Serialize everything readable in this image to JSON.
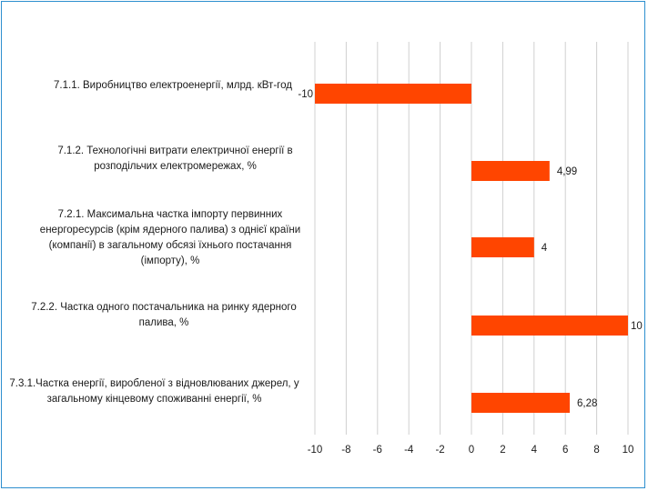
{
  "chart_data": {
    "type": "bar",
    "orientation": "horizontal",
    "categories": [
      "7.1.1. Виробництво електроенергії, млрд. кВт-год",
      "7.1.2. Технологічні витрати електричної енергії в розподільчих електромережах, %",
      "7.2.1. Максимальна частка  імпорту первинних енергоресурсів (крім ядерного палива) з однієї країни (компанії) в загальному обсязі їхнього постачання (імпорту), %",
      "7.2.2. Частка одного постачальника  на ринку ядерного палива, %",
      "7.3.1.Частка енергії, виробленої з відновлюваних джерел, у загальному кінцевому споживанні енергії, %"
    ],
    "values": [
      -10,
      4.99,
      4,
      10,
      6.28
    ],
    "value_labels": [
      "-10",
      "4,99",
      "4",
      "10",
      "6,28"
    ],
    "xlim": [
      -10,
      10
    ],
    "xticks": [
      "-10",
      "-8",
      "-6",
      "-4",
      "-2",
      "0",
      "2",
      "4",
      "6",
      "8",
      "10"
    ],
    "grid": true,
    "bar_color": "#ff4500"
  }
}
